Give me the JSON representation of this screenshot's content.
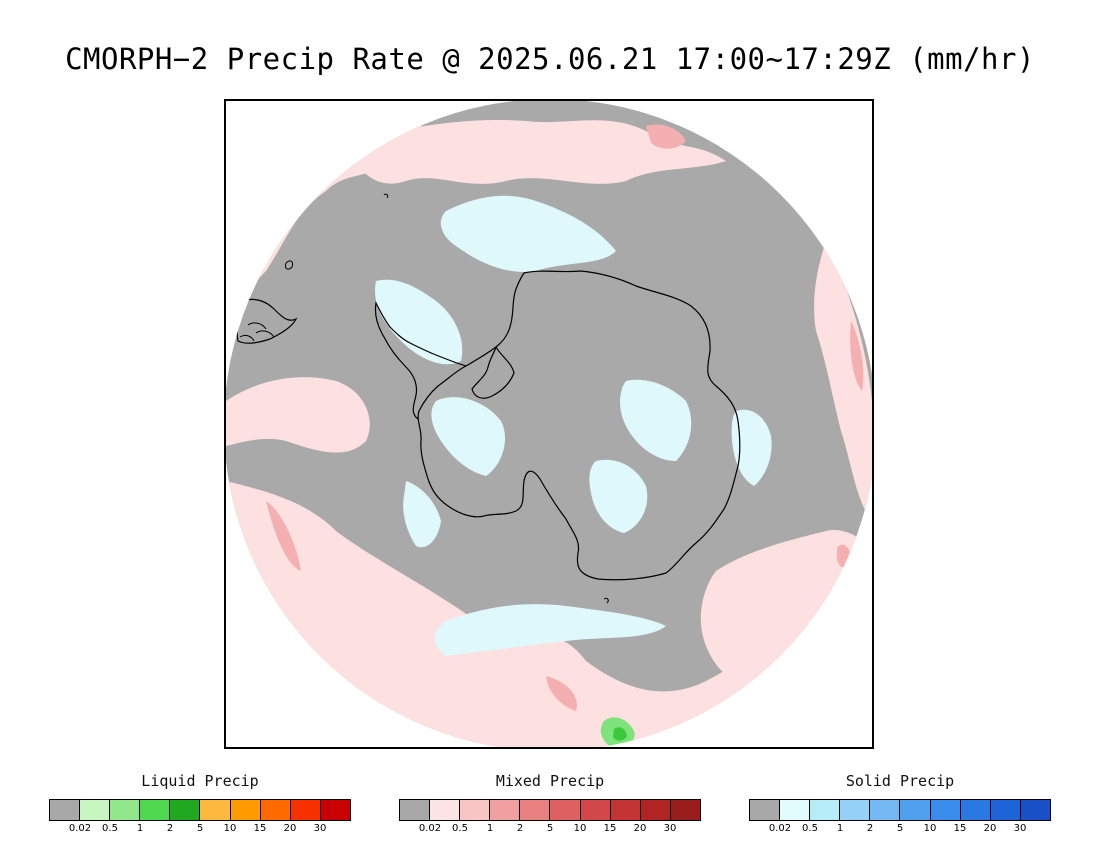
{
  "title": "CMORPH−2 Precip Rate @ 2025.06.21 17:00~17:29Z (mm/hr)",
  "map": {
    "colors": {
      "no_precip": "#a9a9a9",
      "mixed_light": "#fde0e0",
      "mixed_mid": "#f4b0b0",
      "mixed_heavy": "#e88888",
      "solid_light": "#dff8fb",
      "liquid_light": "#7de37a",
      "liquid_mid": "#3cc83c",
      "coastline": "#000000",
      "outside_disk": "#ffffff"
    }
  },
  "legends": [
    {
      "name": "liquid",
      "title": "Liquid Precip",
      "ticks": [
        "0.02",
        "0.5",
        "1",
        "2",
        "5",
        "10",
        "15",
        "20",
        "30"
      ],
      "colors": [
        "#a8a8a8",
        "#c8f5c0",
        "#90e88a",
        "#50d850",
        "#20a820",
        "#fdb840",
        "#ff9a00",
        "#ff6a00",
        "#f83000",
        "#c80000"
      ]
    },
    {
      "name": "mixed",
      "title": "Mixed Precip",
      "ticks": [
        "0.02",
        "0.5",
        "1",
        "2",
        "5",
        "10",
        "15",
        "20",
        "30"
      ],
      "colors": [
        "#a8a8a8",
        "#fde4e4",
        "#f8c4c4",
        "#f0a0a0",
        "#e88080",
        "#de6060",
        "#d24848",
        "#c43434",
        "#b02424",
        "#9a1c1c"
      ]
    },
    {
      "name": "solid",
      "title": "Solid Precip",
      "ticks": [
        "0.02",
        "0.5",
        "1",
        "2",
        "5",
        "10",
        "15",
        "20",
        "30"
      ],
      "colors": [
        "#a8a8a8",
        "#e0fcfc",
        "#b4ecf8",
        "#94d0f8",
        "#74b8f4",
        "#50a0f0",
        "#3a8cec",
        "#2a78e4",
        "#1c64d8",
        "#1850c8"
      ]
    }
  ]
}
